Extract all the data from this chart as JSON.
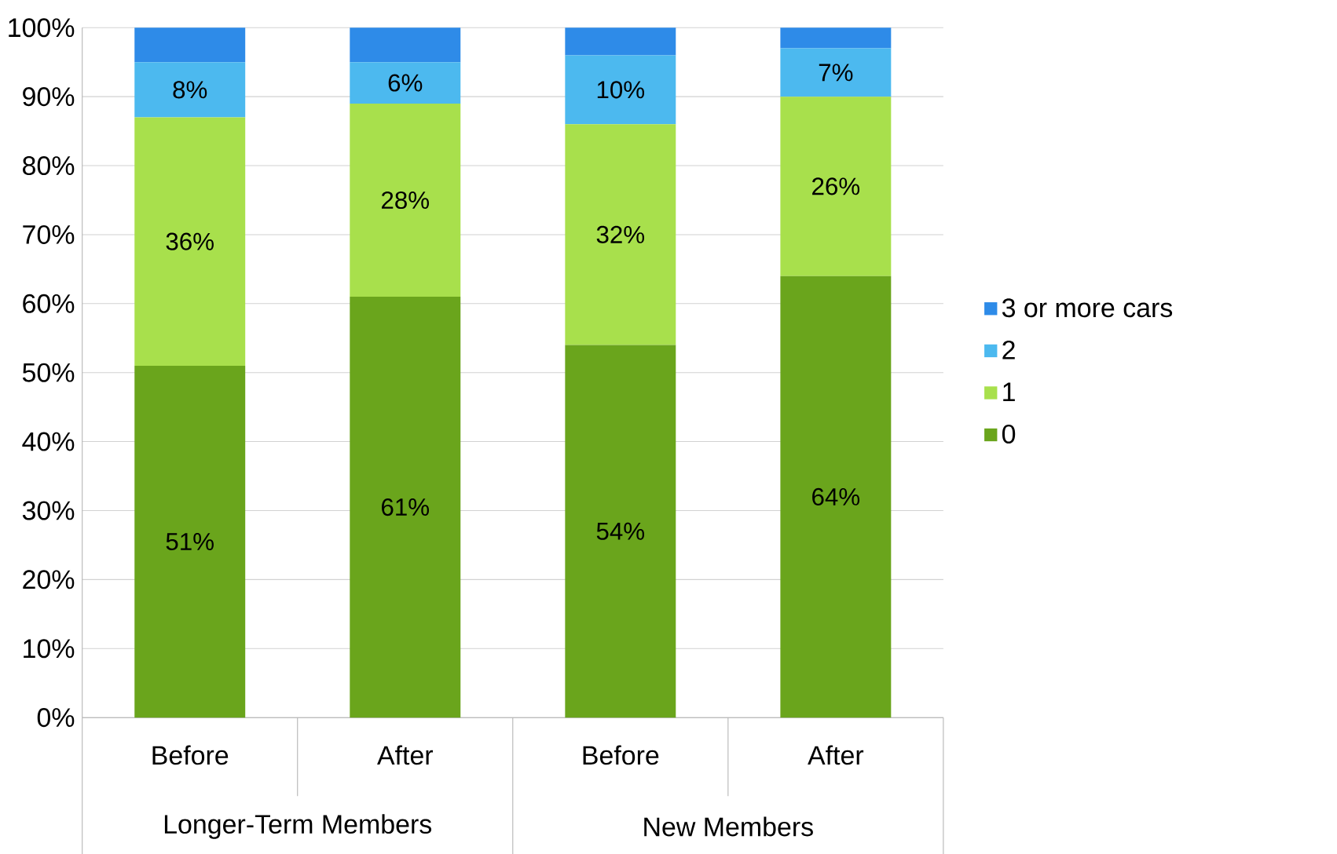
{
  "chart_data": {
    "type": "bar",
    "stacked": true,
    "categories": [
      "Before",
      "After",
      "Before",
      "After"
    ],
    "annotations": [
      "Longer-Term Members",
      "New Members"
    ],
    "series": [
      {
        "name": "0",
        "color": "#6aa51c",
        "values": [
          51,
          61,
          54,
          64
        ],
        "value_labels": [
          "51%",
          "61%",
          "54%",
          "64%"
        ]
      },
      {
        "name": "1",
        "color": "#a8e04c",
        "values": [
          36,
          28,
          32,
          26
        ],
        "value_labels": [
          "36%",
          "28%",
          "32%",
          "26%"
        ]
      },
      {
        "name": "2",
        "color": "#4cb9ef",
        "values": [
          8,
          6,
          10,
          7
        ],
        "value_labels": [
          "8%",
          "6%",
          "10%",
          "7%"
        ]
      },
      {
        "name": "3 or more cars",
        "color": "#2e8be8",
        "values": [
          5,
          5,
          4,
          3
        ]
      }
    ],
    "ylim": [
      0,
      100
    ],
    "yticks": [
      {
        "value": 0,
        "label": "0%"
      },
      {
        "value": 10,
        "label": "10%"
      },
      {
        "value": 20,
        "label": "20%"
      },
      {
        "value": 30,
        "label": "30%"
      },
      {
        "value": 40,
        "label": "40%"
      },
      {
        "value": 50,
        "label": "50%"
      },
      {
        "value": 60,
        "label": "60%"
      },
      {
        "value": 70,
        "label": "70%"
      },
      {
        "value": 80,
        "label": "80%"
      },
      {
        "value": 90,
        "label": "90%"
      },
      {
        "value": 100,
        "label": "100%"
      }
    ],
    "grid": "y",
    "legend": "right"
  }
}
